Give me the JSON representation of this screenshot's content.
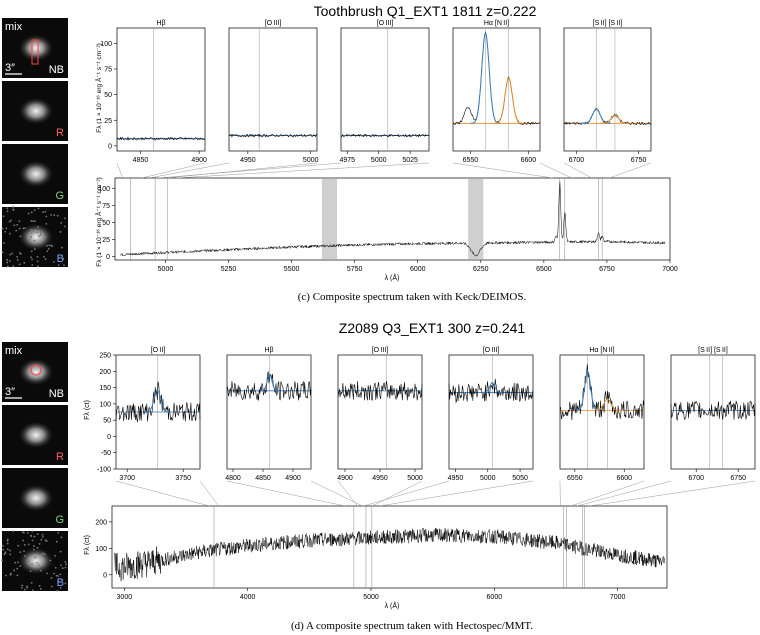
{
  "figure": {
    "panels": [
      {
        "title": "Toothbrush Q1_EXT1 1811 z=0.222",
        "caption": "(c) Composite spectrum taken with Keck/DEIMOS.",
        "thumbnails": [
          {
            "label": "NB",
            "corner_label": "mix",
            "scale_label": "3″",
            "label_color": "#ffffff"
          },
          {
            "label": "R",
            "label_color": "#ff6060"
          },
          {
            "label": "G",
            "label_color": "#7cd67c"
          },
          {
            "label": "B",
            "label_color": "#7aa9ff"
          }
        ],
        "inset_ylabel": "Fλ (1 × 10⁻¹⁶ erg Å⁻¹ s⁻¹ cm⁻²)",
        "main_ylabel": "Fλ (1 × 10⁻¹⁶ erg Å⁻¹ s⁻¹ cm⁻²)",
        "xlabel": "λ (Å)"
      },
      {
        "title": "Z2089 Q3_EXT1 300 z=0.241",
        "caption": "(d) A composite spectrum taken with Hectospec/MMT.",
        "thumbnails": [
          {
            "label": "NB",
            "corner_label": "mix",
            "scale_label": "3″",
            "label_color": "#ffffff"
          },
          {
            "label": "R",
            "label_color": "#ff6060"
          },
          {
            "label": "G",
            "label_color": "#7cd67c"
          },
          {
            "label": "B",
            "label_color": "#7aa9ff"
          }
        ],
        "inset_ylabel": "Fλ (ct)",
        "main_ylabel": "Fλ (ct)",
        "xlabel": "λ (Å)"
      }
    ]
  },
  "chart_data": [
    {
      "type": "line",
      "title": "Toothbrush Q1_EXT1 1811 z=0.222",
      "xlabel": "λ (Å)",
      "ylabel": "Fλ (1 × 10⁻¹⁶ erg Å⁻¹ s⁻¹ cm⁻²)",
      "xlim": [
        4800,
        7000
      ],
      "ylim": [
        -5,
        115
      ],
      "x_ticks": [
        5000,
        5250,
        5500,
        5750,
        6000,
        6250,
        6500,
        6750,
        7000
      ],
      "y_ticks": [
        0,
        25,
        50,
        75,
        100
      ],
      "grey_bands": [
        [
          5620,
          5680
        ],
        [
          6200,
          6260
        ]
      ],
      "line_markers": [
        4861,
        4959,
        5007,
        6563,
        6583,
        6716,
        6731
      ],
      "continuum": {
        "x": [
          4830,
          5000,
          5250,
          5500,
          5750,
          6000,
          6250,
          6500,
          6750,
          6980
        ],
        "y": [
          3,
          6,
          10,
          14,
          17,
          19,
          20,
          21,
          22,
          20
        ]
      },
      "emission": [
        {
          "x": 6563,
          "peak": 108
        },
        {
          "x": 6583,
          "peak": 65
        },
        {
          "x": 6548,
          "peak": 30
        },
        {
          "x": 6716,
          "peak": 35
        },
        {
          "x": 6731,
          "peak": 30
        }
      ],
      "dips": [
        {
          "x": 6230,
          "depth": 18
        }
      ],
      "insets": [
        {
          "title": "Hβ",
          "xlim": [
            4830,
            4905
          ],
          "ylim": [
            -5,
            115
          ],
          "x_ticks": [
            4850,
            4900
          ],
          "y_ticks": [
            0,
            25,
            50,
            75,
            100
          ],
          "markers": [
            4861
          ],
          "continuum": 7,
          "lines": []
        },
        {
          "title": "[O III]",
          "xlim": [
            4935,
            5005
          ],
          "ylim": [
            -5,
            115
          ],
          "x_ticks": [
            4950,
            5000
          ],
          "y_ticks": [],
          "markers": [
            4959
          ],
          "continuum": 10,
          "lines": []
        },
        {
          "title": "[O III]",
          "xlim": [
            4970,
            5040
          ],
          "ylim": [
            -5,
            115
          ],
          "x_ticks": [
            4975,
            5000,
            5025
          ],
          "y_ticks": [],
          "markers": [
            5007
          ],
          "continuum": 10,
          "lines": []
        },
        {
          "title": "Hα     [N II]",
          "xlim": [
            6535,
            6610
          ],
          "ylim": [
            -5,
            115
          ],
          "x_ticks": [
            6550,
            6600
          ],
          "y_ticks": [],
          "markers": [
            6563,
            6583
          ],
          "continuum": 22,
          "lines": [
            {
              "x": 6563,
              "peak": 110,
              "sigma": 3.2,
              "color": "#3a7dbf"
            },
            {
              "x": 6583,
              "peak": 66,
              "sigma": 3.2,
              "color": "#e08a2b"
            },
            {
              "x": 6548,
              "peak": 38,
              "sigma": 3,
              "color": null
            }
          ]
        },
        {
          "title": "[S II] [S II]",
          "xlim": [
            6690,
            6760
          ],
          "ylim": [
            -5,
            115
          ],
          "x_ticks": [
            6700,
            6750
          ],
          "y_ticks": [],
          "markers": [
            6716,
            6731
          ],
          "continuum": 22,
          "lines": [
            {
              "x": 6716,
              "peak": 36,
              "sigma": 3,
              "color": "#3a7dbf"
            },
            {
              "x": 6731,
              "peak": 30,
              "sigma": 3,
              "color": "#e08a2b"
            }
          ]
        }
      ]
    },
    {
      "type": "line",
      "title": "Z2089 Q3_EXT1 300 z=0.241",
      "xlabel": "λ (Å)",
      "ylabel": "Fλ (ct)",
      "xlim": [
        2900,
        7400
      ],
      "ylim": [
        -50,
        260
      ],
      "x_ticks": [
        3000,
        4000,
        5000,
        6000,
        7000
      ],
      "y_ticks": [
        0,
        100,
        200
      ],
      "grey_bands": [],
      "line_markers": [
        3727,
        4861,
        4959,
        5007,
        6563,
        6583,
        6716,
        6731
      ],
      "continuum": {
        "x": [
          3000,
          3300,
          3600,
          4000,
          4500,
          5000,
          5500,
          6000,
          6500,
          7000,
          7350
        ],
        "y": [
          30,
          55,
          85,
          110,
          130,
          140,
          150,
          145,
          120,
          75,
          50
        ]
      },
      "emission": [],
      "dips": [],
      "insets": [
        {
          "title": "[O II]",
          "xlim": [
            3690,
            3765
          ],
          "ylim": [
            -100,
            250
          ],
          "x_ticks": [
            3700,
            3750
          ],
          "y_ticks": [
            -100,
            -50,
            0,
            50,
            100,
            150,
            200,
            250
          ],
          "markers": [
            3727
          ],
          "continuum": 75,
          "lines": [
            {
              "x": 3727,
              "peak": 140,
              "sigma": 3,
              "color": "#3a7dbf"
            }
          ]
        },
        {
          "title": "Hβ",
          "xlim": [
            4790,
            4930
          ],
          "ylim": [
            -100,
            250
          ],
          "x_ticks": [
            4800,
            4850,
            4900
          ],
          "y_ticks": [],
          "markers": [
            4861
          ],
          "continuum": 140,
          "lines": [
            {
              "x": 4861,
              "peak": 190,
              "sigma": 4,
              "color": "#3a7dbf"
            }
          ]
        },
        {
          "title": "[O III]",
          "xlim": [
            4890,
            5010
          ],
          "ylim": [
            -100,
            250
          ],
          "x_ticks": [
            4900,
            4950,
            5000
          ],
          "y_ticks": [],
          "markers": [
            4959
          ],
          "continuum": 140,
          "lines": []
        },
        {
          "title": "[O III]",
          "xlim": [
            4940,
            5070
          ],
          "ylim": [
            -100,
            250
          ],
          "x_ticks": [
            4950,
            5000,
            5050
          ],
          "y_ticks": [],
          "markers": [
            5007
          ],
          "continuum": 135,
          "lines": [
            {
              "x": 5007,
              "peak": 165,
              "sigma": 4,
              "color": "#3a7dbf"
            }
          ]
        },
        {
          "title": "Hα [N II]",
          "xlim": [
            6535,
            6620
          ],
          "ylim": [
            -100,
            250
          ],
          "x_ticks": [
            6550,
            6600
          ],
          "y_ticks": [],
          "markers": [
            6563,
            6583
          ],
          "continuum": 80,
          "lines": [
            {
              "x": 6563,
              "peak": 200,
              "sigma": 3,
              "color": "#3a7dbf"
            },
            {
              "x": 6583,
              "peak": 115,
              "sigma": 3.5,
              "color": "#e08a2b"
            }
          ]
        },
        {
          "title": "[S II] [S II]",
          "xlim": [
            6670,
            6770
          ],
          "ylim": [
            -100,
            250
          ],
          "x_ticks": [
            6700,
            6750
          ],
          "y_ticks": [],
          "markers": [
            6716,
            6731
          ],
          "continuum": 80,
          "lines": []
        }
      ]
    }
  ]
}
